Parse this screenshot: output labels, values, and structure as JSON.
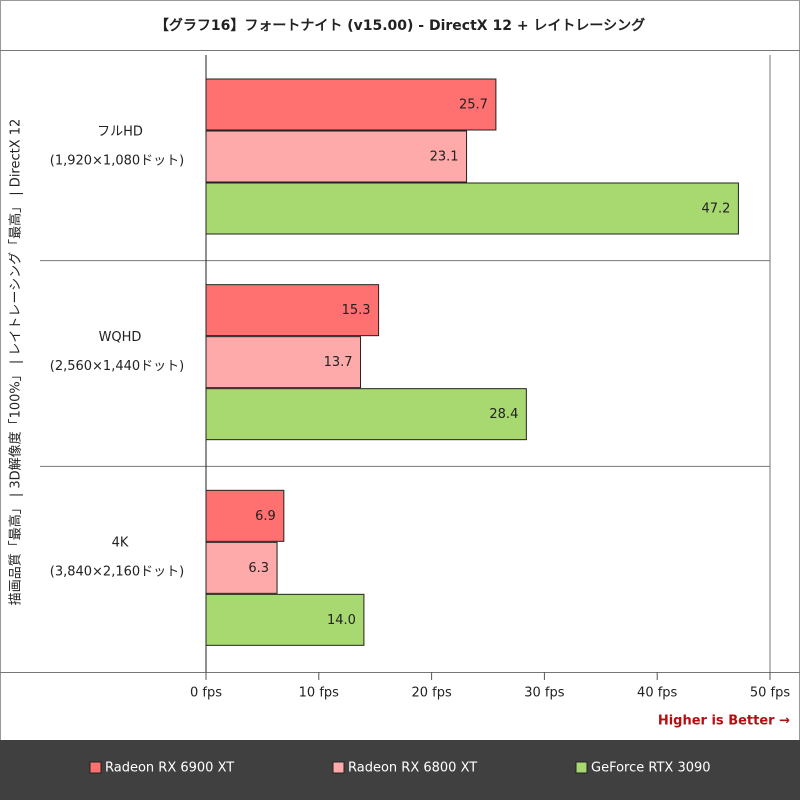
{
  "chart_data": {
    "type": "barh",
    "title": "【グラフ16】フォートナイト (v15.00) - DirectX 12 + レイトレーシング",
    "y_label": "描画品質「最高」 | 3D解像度「100%」 | レイトレーシング「最高」 | DirectX 12",
    "categories": [
      "フルHD",
      "WQHD",
      "4K"
    ],
    "category_sublabels": [
      "(1,920×1,080ドット)",
      "(2,560×1,440ドット)",
      "(3,840×2,160ドット)"
    ],
    "series": [
      {
        "name": "Radeon RX 6900 XT",
        "color": "#ff7070",
        "values": [
          25.7,
          15.3,
          6.9
        ],
        "value_labels": [
          "25.7",
          "15.3",
          "6.9"
        ]
      },
      {
        "name": "Radeon RX 6800 XT",
        "color": "#ffaaaa",
        "values": [
          23.1,
          13.7,
          6.3
        ],
        "value_labels": [
          "23.1",
          "13.7",
          "6.3"
        ]
      },
      {
        "name": "GeForce RTX 3090",
        "color": "#a8d870",
        "values": [
          47.2,
          28.4,
          14.0
        ],
        "value_labels": [
          "47.2",
          "28.4",
          "14.0"
        ]
      }
    ],
    "xlim": [
      0,
      50
    ],
    "xticks": [
      {
        "value": 0,
        "label": "0 fps"
      },
      {
        "value": 10,
        "label": "10 fps"
      },
      {
        "value": 20,
        "label": "20 fps"
      },
      {
        "value": 30,
        "label": "30 fps"
      },
      {
        "value": 40,
        "label": "40 fps"
      },
      {
        "value": 50,
        "label": "50 fps"
      }
    ],
    "annotation": "Higher is Better →",
    "legend": "bottom"
  }
}
